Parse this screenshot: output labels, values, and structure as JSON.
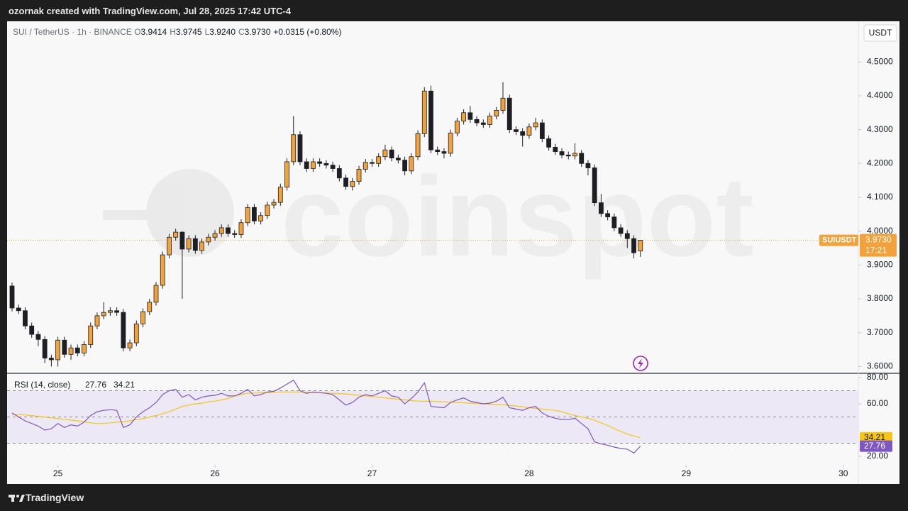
{
  "header": {
    "title": "ozornak created with TradingView.com, Jul 28, 2025 17:42 UTC-4"
  },
  "legend": {
    "symbol": "SUI / TetherUS · 1h · BINANCE",
    "ohlc": [
      {
        "label": "O",
        "value": "3.9414"
      },
      {
        "label": "H",
        "value": "3.9745"
      },
      {
        "label": "L",
        "value": "3.9240"
      },
      {
        "label": "C",
        "value": "3.9730"
      }
    ],
    "change": "+0.0315 (+0.80%)"
  },
  "currency": "USDT",
  "watermark": "coinspot",
  "price_label": {
    "symbol": "SUIUSDT",
    "value": "3.9730",
    "countdown": "17:21"
  },
  "footer": {
    "brand": "TradingView"
  },
  "chart_data": [
    {
      "type": "candlestick",
      "up_color": "#f2a23a",
      "down_color": "#1e1f24",
      "grid": false,
      "ylim": [
        3.58,
        4.62
      ],
      "yticks": [
        {
          "value": 3.6,
          "label": "3.6000"
        },
        {
          "value": 3.7,
          "label": "3.7000"
        },
        {
          "value": 3.8,
          "label": "3.8000"
        },
        {
          "value": 3.9,
          "label": "3.9000"
        },
        {
          "value": 4.0,
          "label": "4.0000"
        },
        {
          "value": 4.1,
          "label": "4.1000"
        },
        {
          "value": 4.2,
          "label": "4.2000"
        },
        {
          "value": 4.3,
          "label": "4.3000"
        },
        {
          "value": 4.4,
          "label": "4.4000"
        },
        {
          "value": 4.5,
          "label": "4.5000"
        }
      ],
      "xlim": [
        -0.76,
        129.3
      ],
      "xticks": [
        {
          "value": 7,
          "label": "25"
        },
        {
          "value": 31,
          "label": "26"
        },
        {
          "value": 55,
          "label": "27"
        },
        {
          "value": 79,
          "label": "28"
        },
        {
          "value": 103,
          "label": "29"
        },
        {
          "value": 127,
          "label": "30"
        }
      ],
      "open": [
        3.838,
        3.773,
        3.765,
        3.72,
        3.695,
        3.68,
        3.625,
        3.62,
        3.678,
        3.636,
        3.655,
        3.64,
        3.665,
        3.72,
        3.75,
        3.76,
        3.765,
        3.76,
        3.655,
        3.67,
        3.726,
        3.762,
        3.79,
        3.84,
        3.93,
        3.982,
        3.997,
        3.947,
        3.978,
        3.943,
        3.968,
        3.982,
        3.993,
        4.01,
        3.993,
        3.99,
        4.025,
        4.07,
        4.03,
        4.046,
        4.077,
        4.085,
        4.13,
        4.205,
        4.285,
        4.205,
        4.185,
        4.205,
        4.2,
        4.195,
        4.185,
        4.157,
        4.132,
        4.147,
        4.183,
        4.203,
        4.2,
        4.22,
        4.24,
        4.216,
        4.21,
        4.178,
        4.22,
        4.288,
        4.414,
        4.24,
        4.235,
        4.23,
        4.29,
        4.325,
        4.35,
        4.33,
        4.32,
        4.315,
        4.34,
        4.357,
        4.393,
        4.3,
        4.294,
        4.283,
        4.308,
        4.32,
        4.273,
        4.248,
        4.235,
        4.225,
        4.222,
        4.23,
        4.2,
        4.187,
        4.084,
        4.052,
        4.042,
        4.01,
        3.993,
        3.978,
        3.9414
      ],
      "high": [
        3.848,
        3.783,
        3.775,
        3.73,
        3.705,
        3.69,
        3.635,
        3.688,
        3.688,
        3.665,
        3.665,
        3.675,
        3.73,
        3.76,
        3.79,
        3.775,
        3.775,
        3.77,
        3.68,
        3.736,
        3.772,
        3.8,
        3.85,
        3.94,
        3.992,
        4.007,
        4.0,
        3.988,
        3.988,
        3.978,
        3.992,
        4.003,
        4.02,
        4.02,
        4.003,
        4.035,
        4.08,
        4.08,
        4.056,
        4.087,
        4.095,
        4.14,
        4.215,
        4.34,
        4.295,
        4.215,
        4.215,
        4.215,
        4.21,
        4.205,
        4.195,
        4.167,
        4.157,
        4.193,
        4.213,
        4.213,
        4.23,
        4.255,
        4.25,
        4.226,
        4.22,
        4.23,
        4.298,
        4.425,
        4.43,
        4.25,
        4.245,
        4.3,
        4.335,
        4.36,
        4.37,
        4.34,
        4.33,
        4.35,
        4.367,
        4.44,
        4.403,
        4.31,
        4.304,
        4.318,
        4.335,
        4.33,
        4.283,
        4.258,
        4.245,
        4.235,
        4.26,
        4.24,
        4.21,
        4.197,
        4.11,
        4.062,
        4.052,
        4.02,
        4.003,
        3.988,
        3.9745
      ],
      "low": [
        3.763,
        3.755,
        3.71,
        3.685,
        3.66,
        3.61,
        3.6,
        3.6,
        3.626,
        3.62,
        3.63,
        3.63,
        3.655,
        3.71,
        3.74,
        3.75,
        3.75,
        3.645,
        3.645,
        3.66,
        3.716,
        3.752,
        3.78,
        3.83,
        3.92,
        3.972,
        3.8,
        3.937,
        3.933,
        3.933,
        3.958,
        3.972,
        3.983,
        3.983,
        3.98,
        3.98,
        4.015,
        4.02,
        4.02,
        4.036,
        4.067,
        4.075,
        4.12,
        4.195,
        4.195,
        4.175,
        4.175,
        4.19,
        4.185,
        4.175,
        4.147,
        4.122,
        4.12,
        4.137,
        4.173,
        4.19,
        4.19,
        4.21,
        4.206,
        4.2,
        4.165,
        4.168,
        4.21,
        4.278,
        4.23,
        4.225,
        4.215,
        4.22,
        4.28,
        4.315,
        4.32,
        4.31,
        4.305,
        4.305,
        4.33,
        4.347,
        4.29,
        4.284,
        4.25,
        4.273,
        4.298,
        4.263,
        4.238,
        4.225,
        4.215,
        4.212,
        4.212,
        4.19,
        4.165,
        4.074,
        4.042,
        4.032,
        4.0,
        3.983,
        3.95,
        3.92,
        3.924
      ],
      "close": [
        3.773,
        3.765,
        3.72,
        3.695,
        3.68,
        3.625,
        3.62,
        3.678,
        3.636,
        3.655,
        3.64,
        3.665,
        3.72,
        3.75,
        3.76,
        3.765,
        3.76,
        3.655,
        3.67,
        3.726,
        3.762,
        3.79,
        3.84,
        3.93,
        3.982,
        3.997,
        3.947,
        3.978,
        3.943,
        3.968,
        3.982,
        3.993,
        4.01,
        3.993,
        3.99,
        4.025,
        4.07,
        4.03,
        4.046,
        4.077,
        4.085,
        4.13,
        4.205,
        4.285,
        4.205,
        4.185,
        4.205,
        4.2,
        4.195,
        4.185,
        4.157,
        4.132,
        4.147,
        4.183,
        4.203,
        4.2,
        4.22,
        4.24,
        4.216,
        4.21,
        4.178,
        4.22,
        4.288,
        4.414,
        4.24,
        4.235,
        4.23,
        4.29,
        4.325,
        4.35,
        4.33,
        4.32,
        4.315,
        4.34,
        4.357,
        4.393,
        4.3,
        4.294,
        4.283,
        4.308,
        4.32,
        4.273,
        4.248,
        4.235,
        4.225,
        4.222,
        4.23,
        4.2,
        4.187,
        4.084,
        4.052,
        4.042,
        4.01,
        3.993,
        3.978,
        3.936,
        3.973
      ]
    },
    {
      "type": "line",
      "title": "RSI (14, close)",
      "ylim": [
        13.5,
        82.7
      ],
      "yticks": [
        {
          "value": 20,
          "label": "20.00"
        },
        {
          "value": 60,
          "label": "60.00"
        },
        {
          "value": 80,
          "label": "80.00"
        }
      ],
      "bands": [
        70,
        50,
        30
      ],
      "band_color": "#ece8f5",
      "series": [
        {
          "name": "RSI",
          "color": "#7e57c2",
          "values": [
            53,
            50,
            47,
            45,
            43,
            40,
            41,
            45,
            42,
            44,
            43,
            46,
            51,
            54,
            55,
            55.5,
            55,
            42,
            44,
            50,
            54,
            57,
            61,
            67,
            70,
            71,
            65,
            67,
            63,
            65,
            66,
            66.5,
            68,
            66,
            66,
            68,
            71,
            66,
            67,
            69,
            69.5,
            72,
            75,
            78,
            70,
            68,
            69,
            68.5,
            68,
            67,
            63,
            59,
            61,
            65,
            67,
            66,
            68,
            70,
            66,
            65,
            60,
            64,
            69,
            76,
            58,
            57.5,
            57,
            61,
            63,
            64.5,
            62,
            61,
            60,
            60.5,
            62,
            65,
            57,
            56,
            55,
            57,
            58,
            53,
            50.5,
            49,
            48,
            48,
            49,
            45,
            41,
            31,
            29.5,
            28.5,
            27,
            26,
            25.5,
            22.5,
            27.76
          ]
        },
        {
          "name": "RSI-based MA",
          "color": "#f5c518",
          "values": [
            52,
            51.8,
            51.5,
            51,
            50.5,
            50,
            49.3,
            48.8,
            48.2,
            47.6,
            47,
            46.5,
            45.5,
            45,
            45,
            45.5,
            46,
            46.5,
            47,
            48,
            48.6,
            50,
            51,
            52.5,
            54,
            56,
            58,
            59,
            60,
            60.5,
            61.5,
            62,
            63,
            64,
            66,
            67,
            68,
            68.2,
            68.4,
            68.6,
            68.8,
            69,
            69,
            69,
            69,
            68.8,
            68.6,
            68.5,
            68.3,
            68,
            67.8,
            67.5,
            67,
            66.5,
            66,
            65.5,
            65,
            64.5,
            64,
            63.5,
            63,
            62.5,
            62,
            62,
            62,
            61.8,
            61.5,
            61.2,
            61,
            60.8,
            60.5,
            60.3,
            60,
            59.8,
            59.5,
            59.3,
            58.8,
            58.3,
            57.8,
            57,
            56.5,
            56,
            55.5,
            55,
            54,
            52.5,
            51,
            50,
            49,
            47.5,
            45.5,
            43.5,
            41,
            39,
            37,
            35.5,
            34.21
          ]
        }
      ]
    }
  ]
}
